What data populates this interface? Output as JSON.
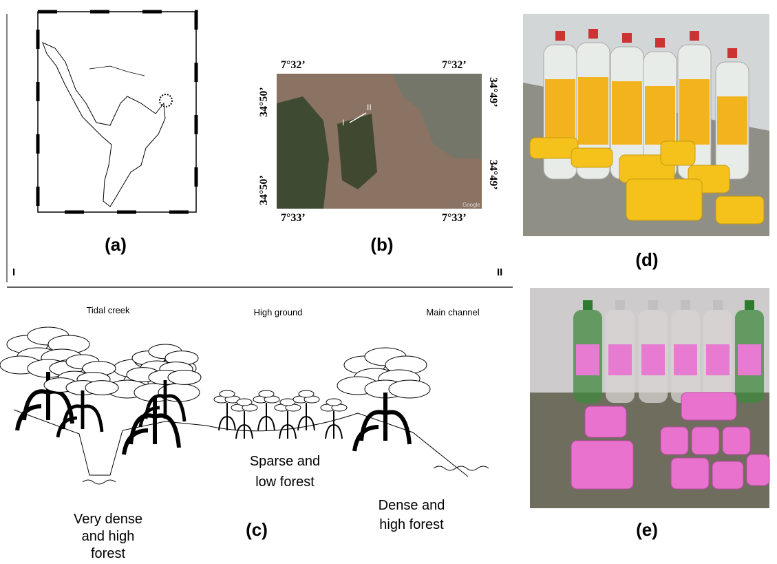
{
  "panel_a": {
    "label": "(a)"
  },
  "panel_b": {
    "label": "(b)",
    "top_left": "7°32’",
    "top_right": "7°32’",
    "bottom_left": "7°33’",
    "bottom_right": "7°33’",
    "left_top": "34°50’",
    "left_bottom": "34°50’",
    "right_top": "34°49’",
    "right_bottom": "34°49’",
    "marker_start": "I",
    "marker_end": "II",
    "watermark": "Google"
  },
  "panel_c": {
    "label": "(c)",
    "transect_start": "I",
    "transect_end": "II",
    "zones": [
      {
        "name": "Tidal creek",
        "description": [
          "Very dense",
          "and high",
          "forest"
        ]
      },
      {
        "name": "High ground",
        "description": [
          "Sparse and",
          "low forest"
        ]
      },
      {
        "name": "Main channel",
        "description": [
          "Dense and",
          "high forest"
        ]
      }
    ]
  },
  "panel_d": {
    "label": "(d)"
  },
  "panel_e": {
    "label": "(e)"
  }
}
